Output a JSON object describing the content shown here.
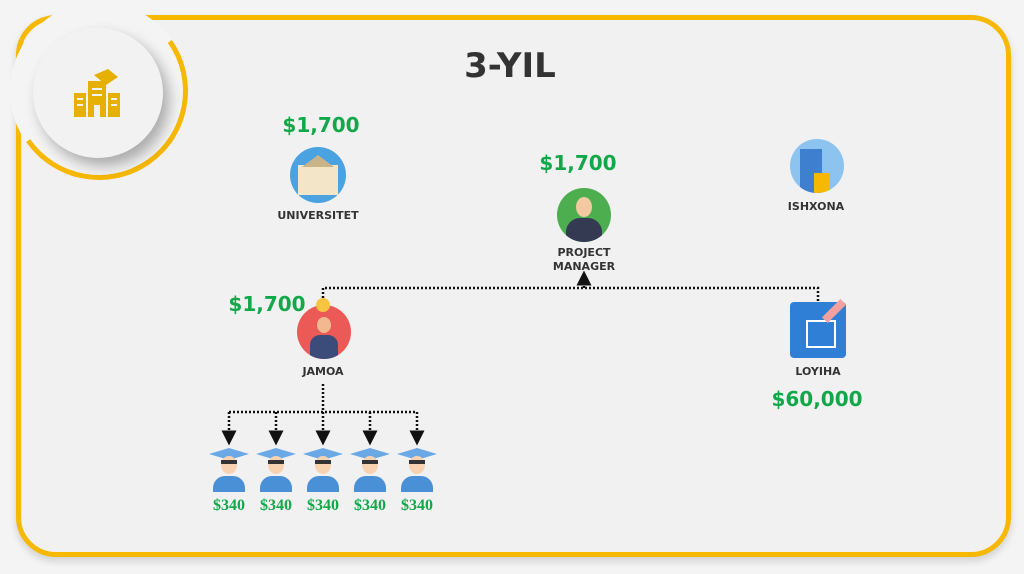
{
  "title": "3-YIL",
  "nodes": {
    "universitet": {
      "label": "UNIVERSITET",
      "amount": "$1,700"
    },
    "project_manager": {
      "label": "PROJECT MANAGER",
      "amount": "$1,700"
    },
    "ishxona": {
      "label": "ISHXONA"
    },
    "jamoa": {
      "label": "JAMOA",
      "amount": "$1,700"
    },
    "loyiha": {
      "label": "LOYIHA",
      "amount": "$60,000"
    }
  },
  "students": [
    {
      "amount": "$340"
    },
    {
      "amount": "$340"
    },
    {
      "amount": "$340"
    },
    {
      "amount": "$340"
    },
    {
      "amount": "$340"
    }
  ],
  "colors": {
    "accent": "#f6b800",
    "money": "#12a84a"
  }
}
